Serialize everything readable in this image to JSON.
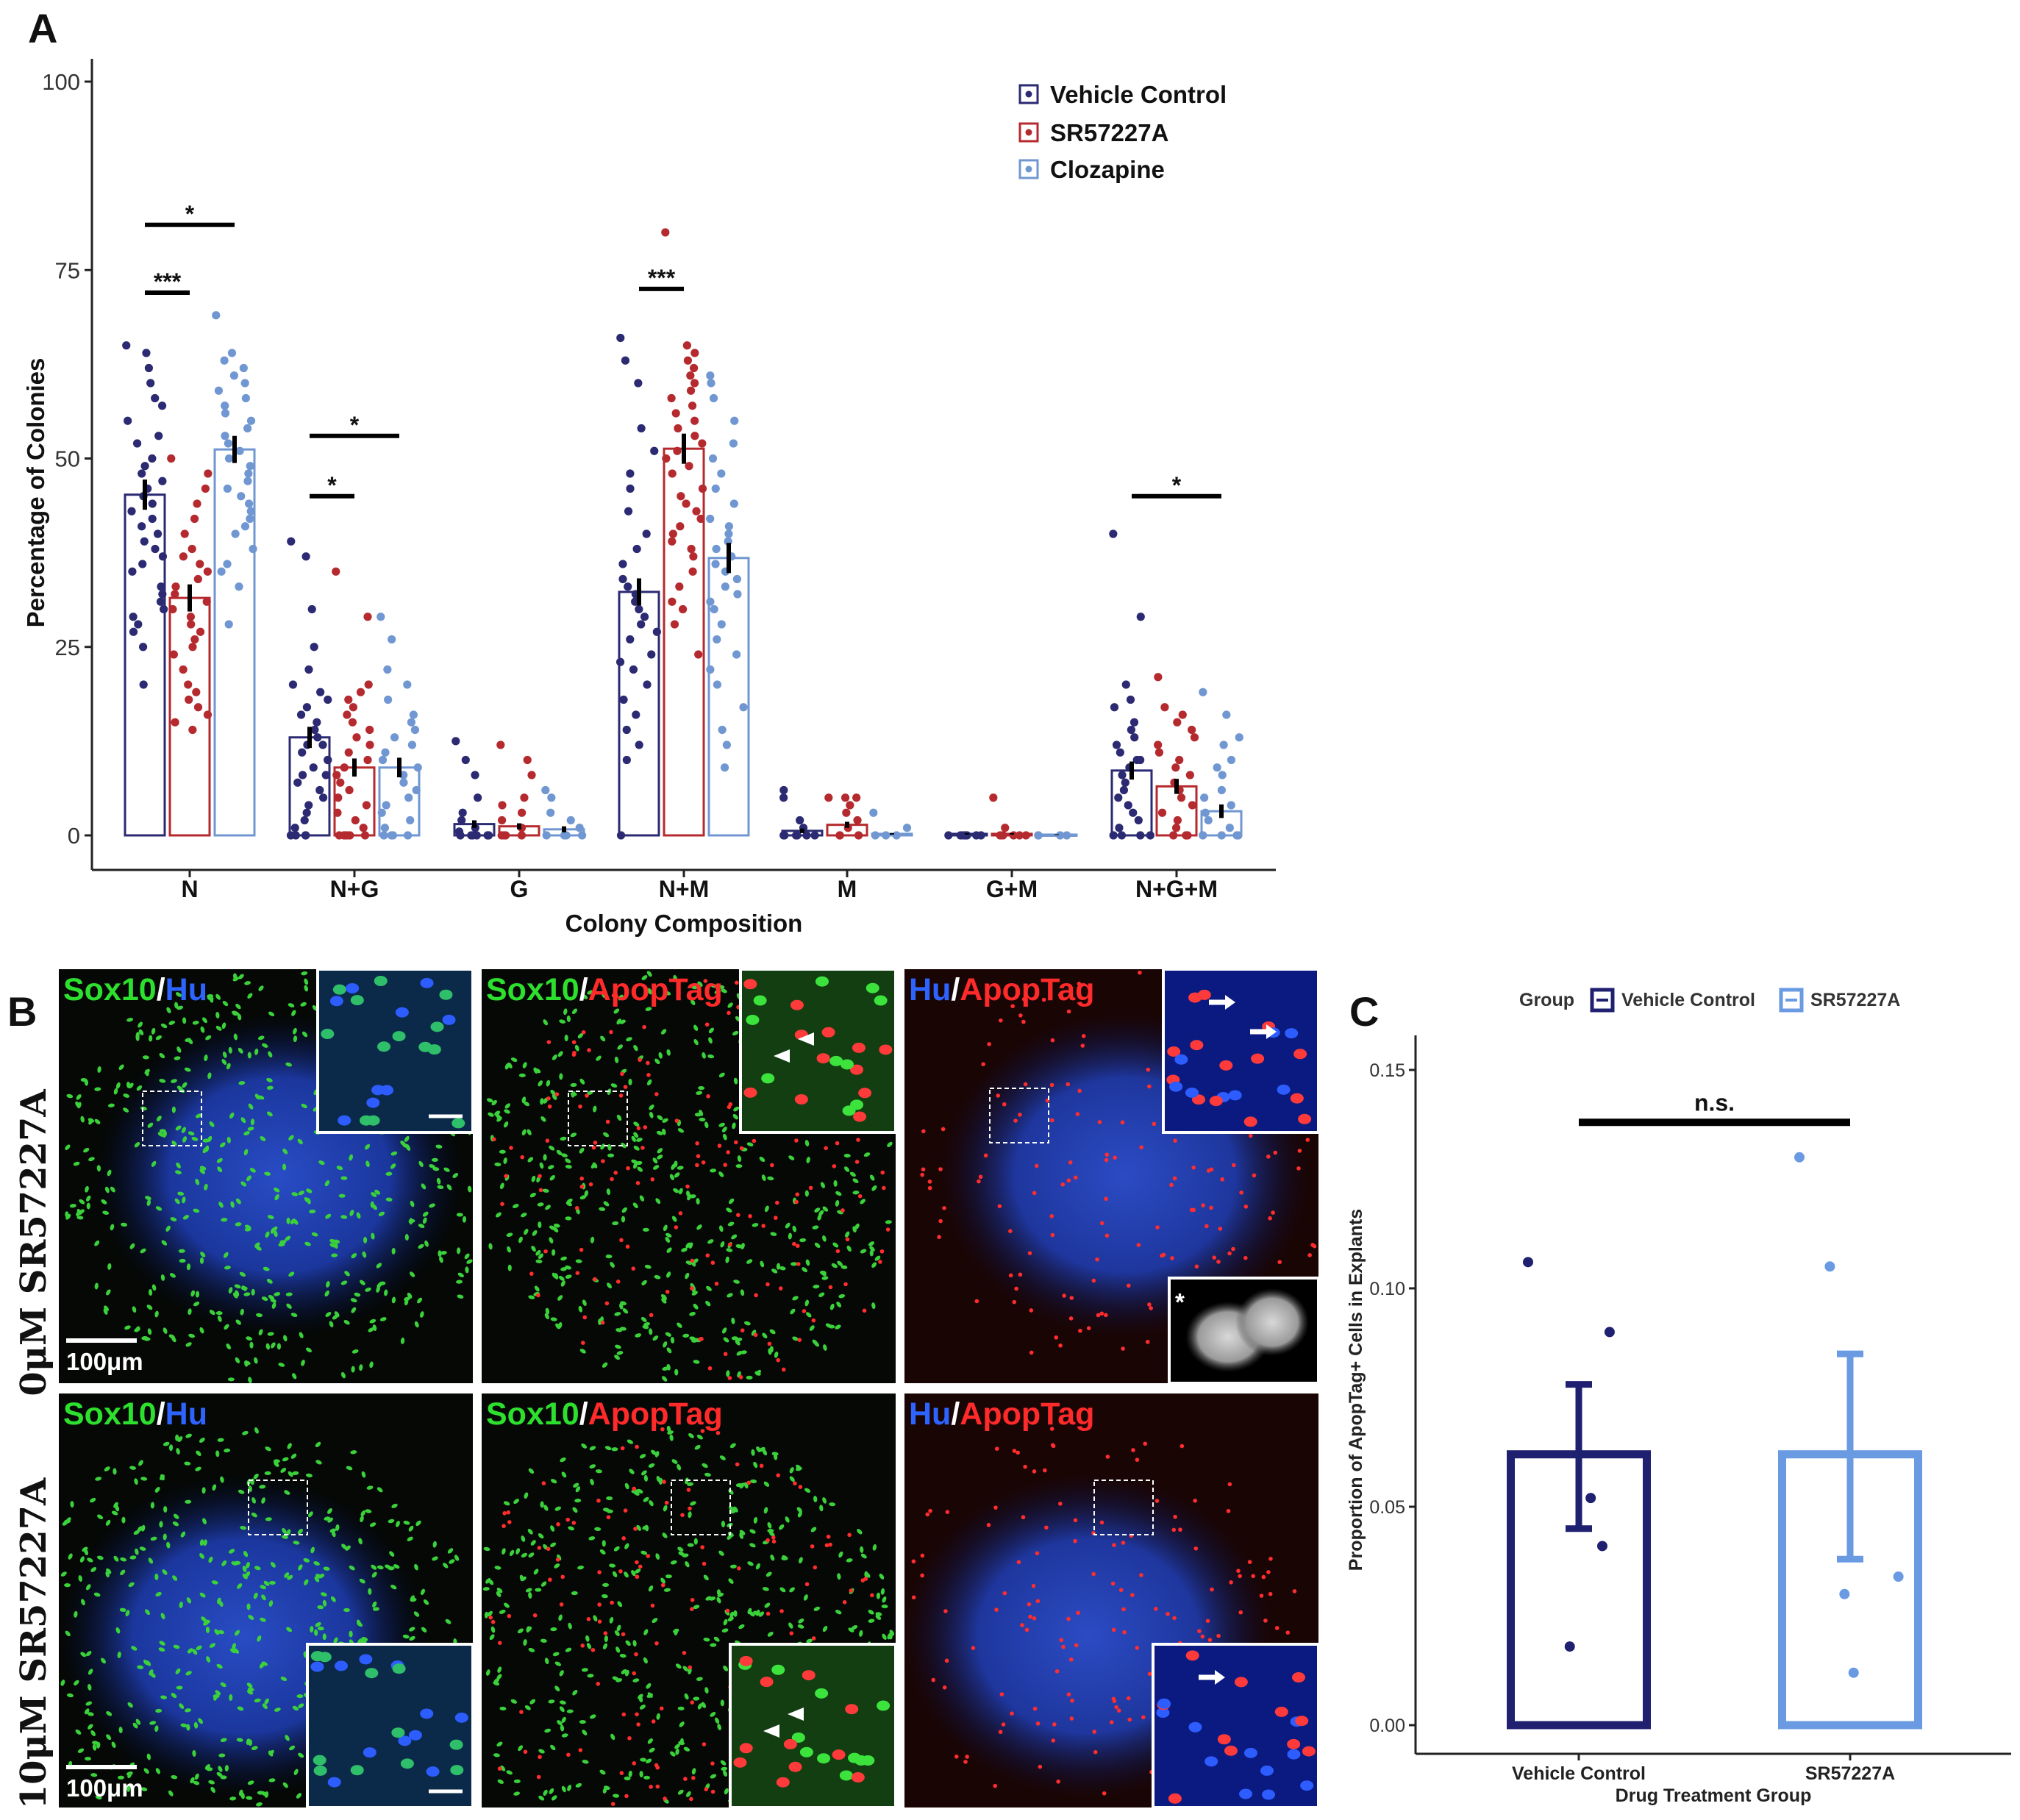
{
  "panel_labels": {
    "a": "A",
    "b": "B",
    "c": "C"
  },
  "chart_data": [
    {
      "type": "bar",
      "panel": "A",
      "xlabel": "Colony Composition",
      "ylabel": "Percentage of Colonies",
      "ylim": [
        0,
        100
      ],
      "yticks": [
        0,
        25,
        50,
        75,
        100
      ],
      "grid": false,
      "legend_position": "top-right",
      "categories": [
        "N",
        "N+G",
        "G",
        "N+M",
        "M",
        "G+M",
        "N+G+M"
      ],
      "series": [
        {
          "name": "Vehicle Control",
          "color": "#2b2a72",
          "values": [
            45.2,
            13.0,
            1.5,
            32.3,
            0.6,
            0.2,
            8.6
          ],
          "se": [
            2.0,
            1.4,
            0.5,
            1.8,
            0.3,
            0.1,
            1.2
          ],
          "points": [
            [
              65,
              64,
              62,
              60,
              58,
              57,
              55,
              53,
              52,
              50,
              49,
              48,
              47,
              46,
              45,
              44,
              43,
              42,
              41,
              40,
              39,
              38,
              37,
              36,
              35,
              33,
              32,
              31,
              30,
              29,
              28,
              27,
              25,
              20
            ],
            [
              39,
              37,
              30,
              25,
              22,
              20,
              19,
              18,
              17,
              16,
              15,
              14,
              13,
              12,
              12,
              11,
              10,
              10,
              9,
              8,
              8,
              7,
              6,
              5,
              4,
              3,
              2,
              1,
              0,
              0,
              0,
              0
            ],
            [
              12.5,
              10,
              8,
              5,
              3,
              2,
              1,
              0.5,
              0,
              0,
              0,
              0,
              0,
              0,
              0
            ],
            [
              66,
              63,
              60,
              54,
              51,
              48,
              46,
              43,
              40,
              38,
              36,
              34,
              33,
              32,
              31,
              30,
              29,
              28,
              27,
              26,
              24,
              23,
              22,
              20,
              18,
              16,
              14,
              12,
              10,
              0
            ],
            [
              6,
              5,
              2,
              1,
              0,
              0,
              0,
              0,
              0,
              0
            ],
            [
              0,
              0,
              0,
              0,
              0,
              0,
              0,
              0
            ],
            [
              40,
              29,
              20,
              18,
              17,
              15,
              14,
              13,
              12,
              11,
              10,
              10,
              9,
              8,
              7,
              6,
              5,
              4,
              3,
              2,
              1,
              0,
              0,
              0,
              0
            ]
          ]
        },
        {
          "name": "SR57227A",
          "color": "#b52a2e",
          "values": [
            31.5,
            9.0,
            1.2,
            51.3,
            1.4,
            0.2,
            6.5
          ],
          "se": [
            1.8,
            1.2,
            0.4,
            2.0,
            0.4,
            0.1,
            1.0
          ],
          "points": [
            [
              50,
              48,
              46,
              44,
              42,
              40,
              38,
              37,
              36,
              35,
              34,
              33,
              32,
              31,
              30,
              29,
              28,
              27,
              26,
              25,
              24,
              22,
              20,
              19,
              18,
              17,
              16,
              15,
              14
            ],
            [
              35,
              29,
              20,
              19,
              18,
              17,
              16,
              15,
              14,
              13,
              12,
              11,
              10,
              9,
              8,
              7,
              6,
              5,
              4,
              3,
              2,
              1,
              0,
              0,
              0,
              0,
              0,
              0
            ],
            [
              12,
              10,
              8,
              5,
              4,
              3,
              2,
              1,
              0,
              0,
              0,
              0
            ],
            [
              80,
              65,
              64,
              63,
              62,
              61,
              60,
              59,
              58,
              57,
              56,
              55,
              54,
              53,
              52,
              51,
              50,
              49,
              48,
              46,
              45,
              44,
              43,
              42,
              41,
              40,
              39,
              38,
              37,
              35,
              33,
              31,
              30,
              28,
              24
            ],
            [
              5,
              5,
              5,
              4,
              3,
              2,
              1,
              0,
              0,
              0
            ],
            [
              5,
              1,
              0,
              0,
              0,
              0,
              0
            ],
            [
              21,
              17,
              16,
              15,
              14,
              13,
              12,
              11,
              10,
              9,
              8,
              7,
              6,
              5,
              4,
              3,
              2,
              1,
              0,
              0,
              0,
              0
            ]
          ]
        },
        {
          "name": "Clozapine",
          "color": "#7097d2",
          "values": [
            51.2,
            9.0,
            0.8,
            36.8,
            0.2,
            0.1,
            3.2
          ],
          "se": [
            1.8,
            1.3,
            0.4,
            2.0,
            0.1,
            0.05,
            0.9
          ],
          "points": [
            [
              69,
              64,
              63,
              62,
              61,
              60,
              59,
              58,
              57,
              56,
              55,
              54,
              53,
              52,
              51,
              50,
              49,
              48,
              47,
              46,
              45,
              44,
              43,
              42,
              41,
              40,
              38,
              36,
              35,
              33,
              28
            ],
            [
              29,
              26,
              22,
              20,
              18,
              16,
              15,
              14,
              13,
              12,
              11,
              10,
              9,
              8,
              7,
              6,
              5,
              4,
              3,
              2,
              1,
              0,
              0,
              0,
              0
            ],
            [
              6,
              5,
              3,
              2,
              1,
              0,
              0,
              0,
              0
            ],
            [
              61,
              60,
              58,
              55,
              52,
              50,
              48,
              46,
              44,
              42,
              41,
              40,
              39,
              38,
              37,
              36,
              35,
              34,
              33,
              32,
              31,
              30,
              28,
              26,
              24,
              22,
              20,
              17,
              14,
              12,
              9
            ],
            [
              3,
              1,
              0,
              0,
              0
            ],
            [
              0,
              0,
              0,
              0
            ],
            [
              19,
              16,
              13,
              12,
              10,
              9,
              8,
              6,
              5,
              4,
              3,
              2,
              1,
              0,
              0,
              0,
              0
            ]
          ]
        }
      ],
      "significance": [
        {
          "label": "*",
          "from": [
            0,
            0
          ],
          "to": [
            0,
            2
          ],
          "y": 81
        },
        {
          "label": "***",
          "from": [
            0,
            0
          ],
          "to": [
            0,
            1
          ],
          "y": 72
        },
        {
          "label": "*",
          "from": [
            1,
            0
          ],
          "to": [
            1,
            2
          ],
          "y": 53
        },
        {
          "label": "*",
          "from": [
            1,
            0
          ],
          "to": [
            1,
            1
          ],
          "y": 45
        },
        {
          "label": "***",
          "from": [
            3,
            0
          ],
          "to": [
            3,
            1
          ],
          "y": 72.5
        },
        {
          "label": "*",
          "from": [
            6,
            0
          ],
          "to": [
            6,
            2
          ],
          "y": 45
        }
      ]
    },
    {
      "type": "bar",
      "panel": "C",
      "xlabel": "Drug Treatment Group",
      "ylabel": "Proportion of ApopTag+ Cells in Explants",
      "legend_title": "Group",
      "legend_position": "top",
      "ylim": [
        0,
        0.15
      ],
      "yticks": [
        "0.00",
        "0.05",
        "0.10",
        "0.15"
      ],
      "grid": false,
      "categories": [
        "Vehicle Control",
        "SR57227A"
      ],
      "series": [
        {
          "name": "Vehicle Control",
          "color": "#1f2070",
          "value": 0.062,
          "err": [
            0.045,
            0.078
          ],
          "points": [
            0.106,
            0.09,
            0.052,
            0.041,
            0.018
          ]
        },
        {
          "name": "SR57227A",
          "color": "#6a9ae2",
          "value": 0.062,
          "err": [
            0.038,
            0.085
          ],
          "points": [
            0.13,
            0.105,
            0.034,
            0.03,
            0.012
          ]
        }
      ],
      "significance": {
        "label": "n.s.",
        "y": 0.138
      }
    }
  ],
  "panel_b": {
    "rows": [
      "0μM SR57227A",
      "10μM SR57227A"
    ],
    "columns": [
      {
        "a": "Sox10",
        "sep": "/",
        "b": "Hu",
        "color_a": "#2ee02e",
        "color_b": "#2d63ff"
      },
      {
        "a": "Sox10",
        "sep": "/",
        "b": "ApopTag",
        "color_a": "#2ee02e",
        "color_b": "#ff2a2a"
      },
      {
        "a": "Hu",
        "sep": "/",
        "b": "ApopTag",
        "color_a": "#2d63ff",
        "color_b": "#ff2a2a"
      }
    ],
    "scale_bar": "100μm",
    "asterisk": "*"
  }
}
